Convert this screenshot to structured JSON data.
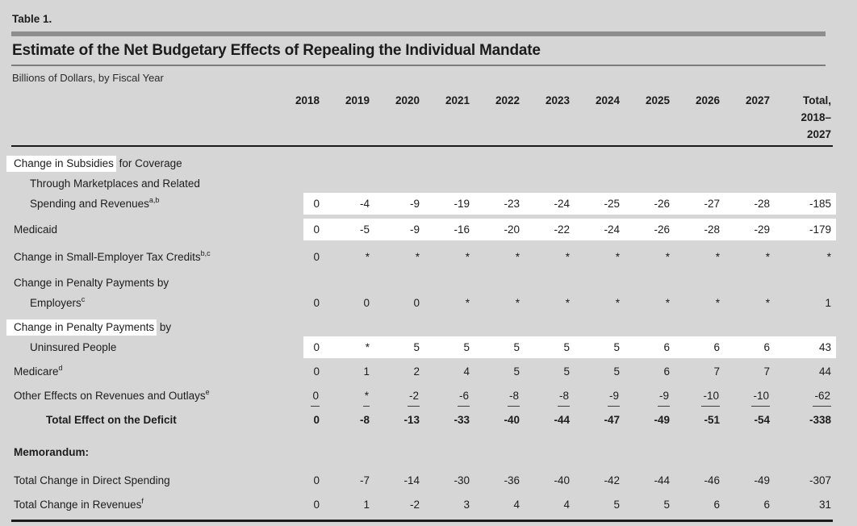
{
  "colors": {
    "page_bg": "#d6d6d6",
    "highlight": "#ffffff",
    "text": "#1c1c1c",
    "rule_dark": "#1a1a1a",
    "bar_gray": "#8d8d8d",
    "line_gray": "#7c7c7c"
  },
  "table": {
    "label": "Table 1.",
    "title": "Estimate of the Net Budgetary Effects of Repealing the Individual Mandate",
    "subtitle": "Billions of Dollars, by Fiscal Year",
    "columns": [
      "2018",
      "2019",
      "2020",
      "2021",
      "2022",
      "2023",
      "2024",
      "2025",
      "2026",
      "2027"
    ],
    "total_header": [
      "Total,",
      "2018–",
      "2027"
    ],
    "rows": [
      {
        "hl": "Change in Subsidies",
        "text": " for Coverage"
      },
      {
        "text": "Through Marketplaces and Related",
        "indent": 1
      },
      {
        "text": "Spending and Revenues",
        "sup": "a,b",
        "indent": 1,
        "band": true,
        "values": [
          "0",
          "-4",
          "-9",
          "-19",
          "-23",
          "-24",
          "-25",
          "-26",
          "-27",
          "-28",
          "-185"
        ]
      },
      {
        "text": "Medicaid",
        "band": true,
        "values": [
          "0",
          "-5",
          "-9",
          "-16",
          "-20",
          "-22",
          "-24",
          "-26",
          "-28",
          "-29",
          "-179"
        ]
      },
      {
        "text": "Change in Small-Employer Tax Credits",
        "sup": "b,c",
        "values": [
          "0",
          "*",
          "*",
          "*",
          "*",
          "*",
          "*",
          "*",
          "*",
          "*",
          "*"
        ]
      },
      {
        "text": "Change in Penalty Payments by"
      },
      {
        "text": "Employers",
        "sup": "c",
        "indent": 1,
        "values": [
          "0",
          "0",
          "0",
          "*",
          "*",
          "*",
          "*",
          "*",
          "*",
          "*",
          "1"
        ]
      },
      {
        "hl": "Change in Penalty Payments",
        "text": " by"
      },
      {
        "text": "Uninsured People",
        "indent": 1,
        "band": true,
        "values": [
          "0",
          "*",
          "5",
          "5",
          "5",
          "5",
          "5",
          "6",
          "6",
          "6",
          "43"
        ]
      },
      {
        "text": "Medicare",
        "sup": "d",
        "values": [
          "0",
          "1",
          "2",
          "4",
          "5",
          "5",
          "5",
          "6",
          "7",
          "7",
          "44"
        ]
      },
      {
        "text": "Other Effects on Revenues and Outlays",
        "sup": "e",
        "underline": true,
        "values": [
          "0",
          "*",
          "-2",
          "-6",
          "-8",
          "-8",
          "-9",
          "-9",
          "-10",
          "-10",
          "-62"
        ]
      },
      {
        "text": "Total Effect on the Deficit",
        "indent": 2,
        "bold": true,
        "values": [
          "0",
          "-8",
          "-13",
          "-33",
          "-40",
          "-44",
          "-47",
          "-49",
          "-51",
          "-54",
          "-338"
        ]
      },
      {
        "text": "Memorandum:",
        "bold": true
      },
      {
        "text": "Total Change in Direct Spending",
        "values": [
          "0",
          "-7",
          "-14",
          "-30",
          "-36",
          "-40",
          "-42",
          "-44",
          "-46",
          "-49",
          "-307"
        ]
      },
      {
        "text": "Total Change in Revenues",
        "sup": "f",
        "values": [
          "0",
          "1",
          "-2",
          "3",
          "4",
          "4",
          "5",
          "5",
          "6",
          "6",
          "31"
        ]
      }
    ]
  }
}
